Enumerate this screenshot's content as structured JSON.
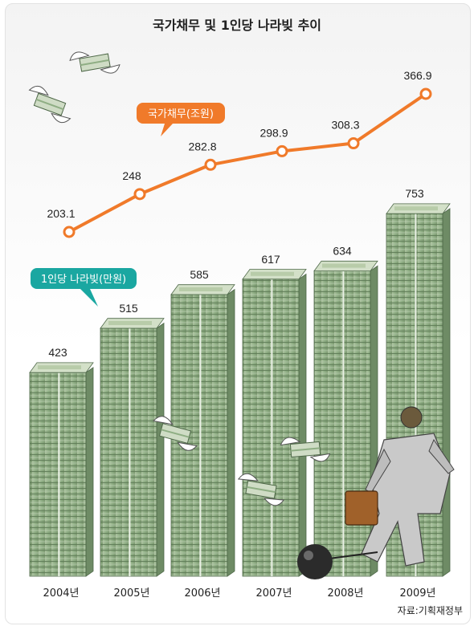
{
  "title": "국가채무 및 1인당 나라빚 추이",
  "source": "자료:기획재정부",
  "colors": {
    "debt_line": "#f07a2a",
    "per_capita_label": "#1aa7a1",
    "money_green": "#8fae84",
    "money_dark": "#5d7a55"
  },
  "chart_data": {
    "type": "bar",
    "categories": [
      "2004년",
      "2005년",
      "2006년",
      "2007년",
      "2008년",
      "2009년"
    ],
    "series": [
      {
        "name": "1인당 나라빚(만원)",
        "type": "bar",
        "values": [
          423,
          515,
          585,
          617,
          634,
          753
        ],
        "labels": [
          "423",
          "515",
          "585",
          "617",
          "634",
          "753"
        ]
      },
      {
        "name": "국가채무(조원)",
        "type": "line",
        "values": [
          203.1,
          248,
          282.8,
          298.9,
          308.3,
          366.9
        ],
        "labels": [
          "203.1",
          "248",
          "282.8",
          "298.9",
          "308.3",
          "366.9"
        ]
      }
    ],
    "xlabel": "",
    "ylabel": "",
    "grid": false,
    "legend": "inline"
  }
}
